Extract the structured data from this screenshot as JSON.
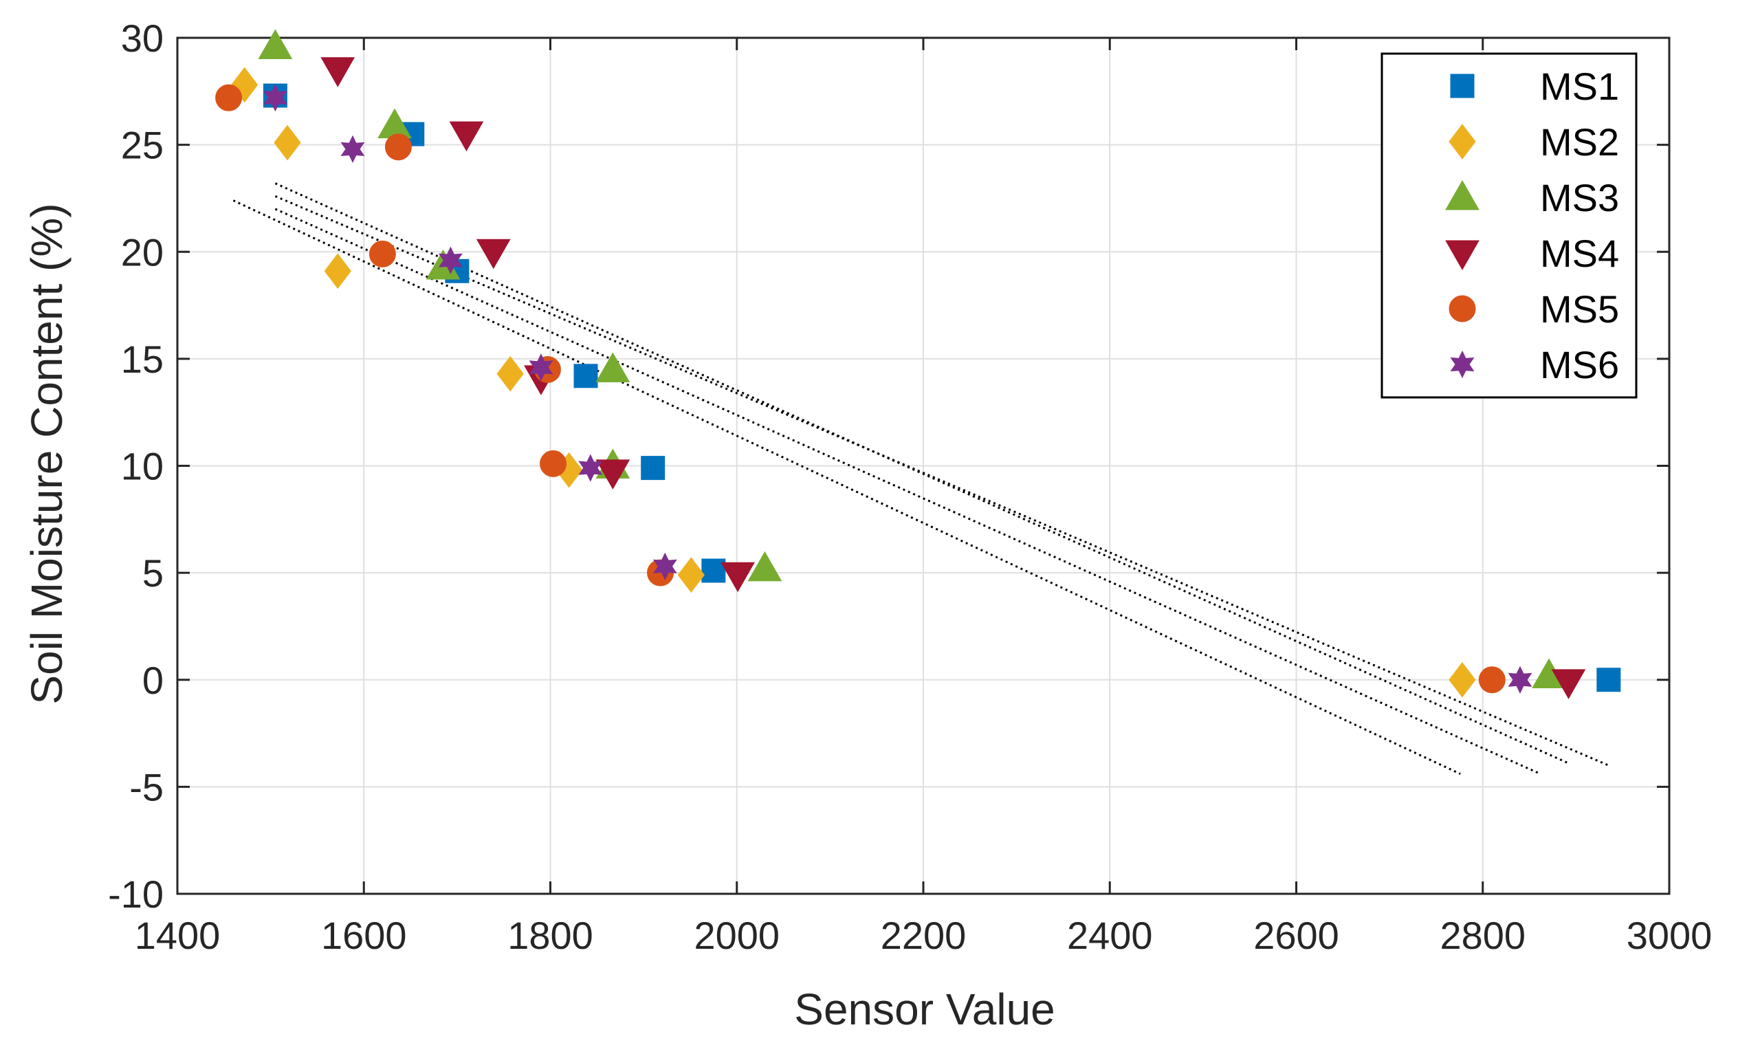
{
  "chart_data": {
    "type": "scatter",
    "title": "",
    "xlabel": "Sensor Value",
    "ylabel": "Soil Moisture Content (%)",
    "xlim": [
      1400,
      3000
    ],
    "ylim": [
      -10,
      30
    ],
    "xticks": [
      1400,
      1600,
      1800,
      2000,
      2200,
      2400,
      2600,
      2800,
      3000
    ],
    "yticks": [
      -10,
      -5,
      0,
      5,
      10,
      15,
      20,
      25,
      30
    ],
    "grid": true,
    "legend_position": "top-right",
    "series": [
      {
        "name": "MS1",
        "marker": "square",
        "color": "#0072BD",
        "points": [
          [
            1505,
            27.3
          ],
          [
            1652,
            25.5
          ],
          [
            1700,
            19.1
          ],
          [
            1838,
            14.2
          ],
          [
            1910,
            9.9
          ],
          [
            1975,
            5.1
          ],
          [
            2935,
            0.0
          ]
        ]
      },
      {
        "name": "MS2",
        "marker": "diamond",
        "color": "#EDB120",
        "points": [
          [
            1472,
            27.8
          ],
          [
            1518,
            25.1
          ],
          [
            1572,
            19.1
          ],
          [
            1757,
            14.3
          ],
          [
            1820,
            9.8
          ],
          [
            1951,
            4.9
          ],
          [
            2778,
            0.0
          ]
        ]
      },
      {
        "name": "MS3",
        "marker": "triangle-up",
        "color": "#77AC30",
        "points": [
          [
            1505,
            29.6
          ],
          [
            1633,
            25.9
          ],
          [
            1685,
            19.3
          ],
          [
            1867,
            14.5
          ],
          [
            1867,
            10.0
          ],
          [
            2030,
            5.2
          ],
          [
            2871,
            0.2
          ]
        ]
      },
      {
        "name": "MS4",
        "marker": "triangle-down",
        "color": "#A2142F",
        "points": [
          [
            1572,
            28.5
          ],
          [
            1710,
            25.5
          ],
          [
            1739,
            20.0
          ],
          [
            1790,
            14.1
          ],
          [
            1867,
            9.7
          ],
          [
            2001,
            4.9
          ],
          [
            2892,
            -0.1
          ]
        ]
      },
      {
        "name": "MS5",
        "marker": "circle",
        "color": "#D95319",
        "points": [
          [
            1455,
            27.2
          ],
          [
            1637,
            24.9
          ],
          [
            1620,
            19.9
          ],
          [
            1797,
            14.5
          ],
          [
            1803,
            10.1
          ],
          [
            1918,
            5.0
          ],
          [
            2810,
            0.0
          ]
        ]
      },
      {
        "name": "MS6",
        "marker": "hexagram",
        "color": "#7E2F8E",
        "points": [
          [
            1505,
            27.2
          ],
          [
            1588,
            24.8
          ],
          [
            1693,
            19.6
          ],
          [
            1790,
            14.6
          ],
          [
            1843,
            9.9
          ],
          [
            1923,
            5.3
          ],
          [
            2840,
            0.0
          ]
        ]
      }
    ],
    "fit_lines": [
      {
        "x": [
          1460,
          2776
        ],
        "y": [
          22.4,
          -4.4
        ]
      },
      {
        "x": [
          1505,
          2862
        ],
        "y": [
          22.0,
          -4.4
        ]
      },
      {
        "x": [
          1505,
          2892
        ],
        "y": [
          23.2,
          -3.9
        ]
      },
      {
        "x": [
          1505,
          2935
        ],
        "y": [
          22.6,
          -4.0
        ]
      }
    ]
  }
}
